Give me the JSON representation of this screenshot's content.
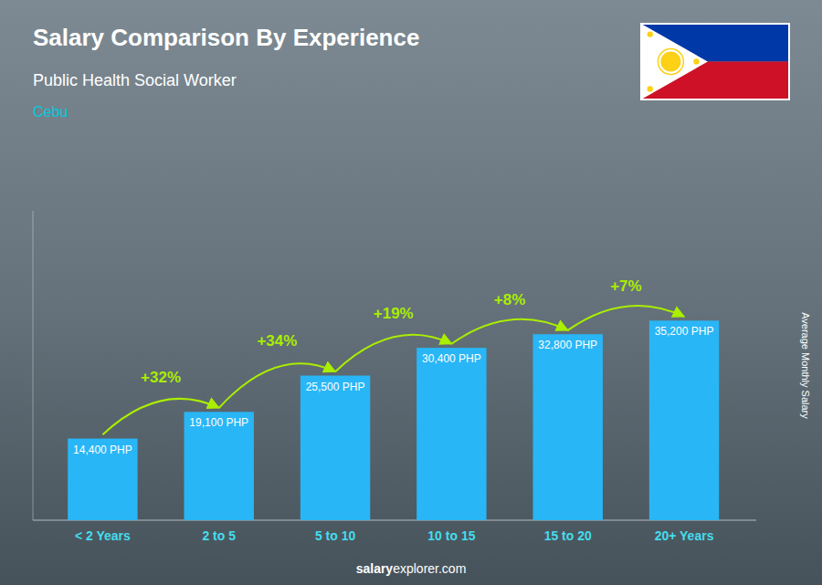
{
  "chart_data": {
    "type": "bar",
    "title": "Salary Comparison By Experience",
    "subtitle": "Public Health Social Worker",
    "location": "Cebu",
    "categories": [
      "< 2 Years",
      "2 to 5",
      "5 to 10",
      "10 to 15",
      "15 to 20",
      "20+ Years"
    ],
    "values": [
      14400,
      19100,
      25500,
      30400,
      32800,
      35200
    ],
    "value_labels": [
      "14,400 PHP",
      "19,100 PHP",
      "25,500 PHP",
      "30,400 PHP",
      "32,800 PHP",
      "35,200 PHP"
    ],
    "annotations": [
      null,
      "+32%",
      "+34%",
      "+19%",
      "+8%",
      "+7%"
    ],
    "color": "#29b6f6",
    "y_label": "Average Monthly Salary",
    "footer": [
      "salary",
      "explorer.com"
    ],
    "ylim": [
      0,
      54560
    ],
    "tick_labels": "x",
    "data_labels": true
  }
}
